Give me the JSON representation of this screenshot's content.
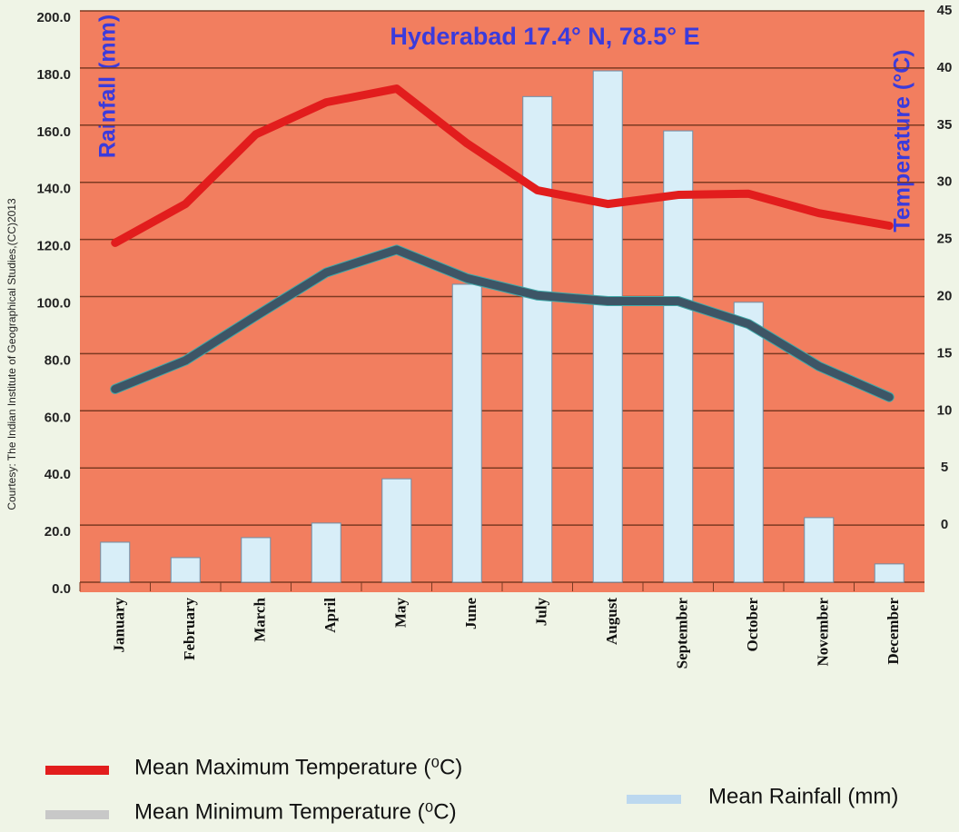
{
  "chart_data": {
    "type": "climograph",
    "title": "Hyderabad 17.4° N, 78.5° E",
    "y_label": "Rainfall (mm)",
    "y2_label": "Temperature (°C)",
    "annotation": "Courtesy:  The Indian Institute of Geographical Studies,(CC)2013",
    "categories": [
      "January",
      "February",
      "March",
      "April",
      "May",
      "June",
      "July",
      "August",
      "September",
      "October",
      "November",
      "December"
    ],
    "series": [
      {
        "name": "Mean Maximum Temperature (⁰C)",
        "type": "line",
        "axis": "y2",
        "color": "#e21d1d",
        "values": [
          24.7,
          28.1,
          34.2,
          37.0,
          38.2,
          33.4,
          29.3,
          28.1,
          28.9,
          29.0,
          27.3,
          26.2
        ]
      },
      {
        "name": "Mean Minimum Temperature  (⁰C)",
        "type": "line",
        "axis": "y2",
        "color": "#3d5566",
        "legend_color": "#c8c8c8",
        "values": [
          11.9,
          14.4,
          18.3,
          22.1,
          24.1,
          21.6,
          20.1,
          19.6,
          19.6,
          17.6,
          13.9,
          11.2
        ]
      },
      {
        "name": "Mean Rainfall (mm)",
        "type": "bar",
        "color": "#d8eef8",
        "legend_color": "#bcd8ef",
        "values": [
          14.0,
          8.6,
          15.6,
          20.7,
          36.2,
          104.3,
          170.0,
          179.0,
          158.0,
          98.0,
          22.6,
          6.4
        ]
      }
    ],
    "ylim": [
      0,
      200
    ],
    "yticks": [
      {
        "value": 0,
        "label": "0.0"
      },
      {
        "value": 20,
        "label": "20.0"
      },
      {
        "value": 40,
        "label": "40.0"
      },
      {
        "value": 60,
        "label": "60.0"
      },
      {
        "value": 80,
        "label": "80.0"
      },
      {
        "value": 100,
        "label": "100.0"
      },
      {
        "value": 120,
        "label": "120.0"
      },
      {
        "value": 140,
        "label": "140.0"
      },
      {
        "value": 160,
        "label": "160.0"
      },
      {
        "value": 180,
        "label": "180.0"
      },
      {
        "value": 200,
        "label": "200.0"
      }
    ],
    "y2lim": [
      -5,
      45
    ],
    "y2ticks": [
      0,
      5,
      10,
      15,
      20,
      25,
      30,
      35,
      40,
      45
    ],
    "grid": true
  }
}
